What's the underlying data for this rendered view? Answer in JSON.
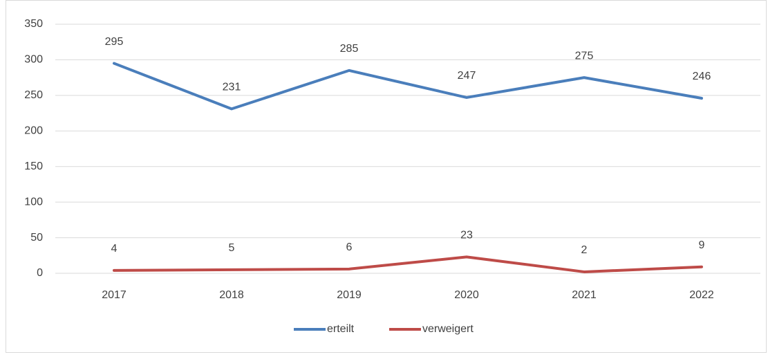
{
  "chart_data": {
    "type": "line",
    "categories": [
      "2017",
      "2018",
      "2019",
      "2020",
      "2021",
      "2022"
    ],
    "series": [
      {
        "name": "erteilt",
        "color": "#4a7ebb",
        "values": [
          295,
          231,
          285,
          247,
          275,
          246
        ]
      },
      {
        "name": "verweigert",
        "color": "#be4b48",
        "values": [
          4,
          5,
          6,
          23,
          2,
          9
        ]
      }
    ],
    "ylim": [
      0,
      350
    ],
    "yticks": [
      0,
      50,
      100,
      150,
      200,
      250,
      300,
      350
    ],
    "grid": true,
    "legend": "bottom"
  }
}
